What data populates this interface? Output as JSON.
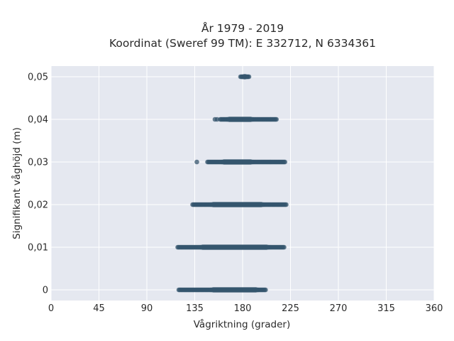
{
  "chart_data": {
    "type": "scatter",
    "title": "År 1979 - 2019",
    "subtitle": "Koordinat (Sweref 99 TM): E 332712, N 6334361",
    "xlabel": "Vågriktning (grader)",
    "ylabel": "Signifikant våghöjd (m)",
    "xlim": [
      0,
      360
    ],
    "ylim": [
      -0.0025,
      0.0525
    ],
    "xticks": [
      0,
      45,
      90,
      135,
      180,
      225,
      270,
      315,
      360
    ],
    "xtick_labels": [
      "0",
      "45",
      "90",
      "135",
      "180",
      "225",
      "270",
      "315",
      "360"
    ],
    "yticks": [
      0,
      0.01,
      0.02,
      0.03,
      0.04,
      0.05
    ],
    "ytick_labels": [
      "0",
      "0,01",
      "0,02",
      "0,03",
      "0,04",
      "0,05"
    ],
    "grid": true,
    "background": "#e5e8f0",
    "marker_color": "#35566e",
    "bands": [
      {
        "y": 0,
        "x_min": 120,
        "x_max": 202,
        "dense_min": 150,
        "dense_max": 195,
        "outliers": []
      },
      {
        "y": 0.01,
        "x_min": 119,
        "x_max": 219,
        "dense_min": 140,
        "dense_max": 205,
        "outliers": []
      },
      {
        "y": 0.02,
        "x_min": 133,
        "x_max": 221,
        "dense_min": 150,
        "dense_max": 200,
        "outliers": []
      },
      {
        "y": 0.03,
        "x_min": 147,
        "x_max": 220,
        "dense_min": 160,
        "dense_max": 190,
        "outliers": [
          137
        ]
      },
      {
        "y": 0.04,
        "x_min": 159,
        "x_max": 212,
        "dense_min": 165,
        "dense_max": 190,
        "outliers": [
          154,
          156
        ]
      },
      {
        "y": 0.05,
        "x_min": 178,
        "x_max": 186,
        "dense_min": 179,
        "dense_max": 185,
        "outliers": []
      }
    ]
  }
}
